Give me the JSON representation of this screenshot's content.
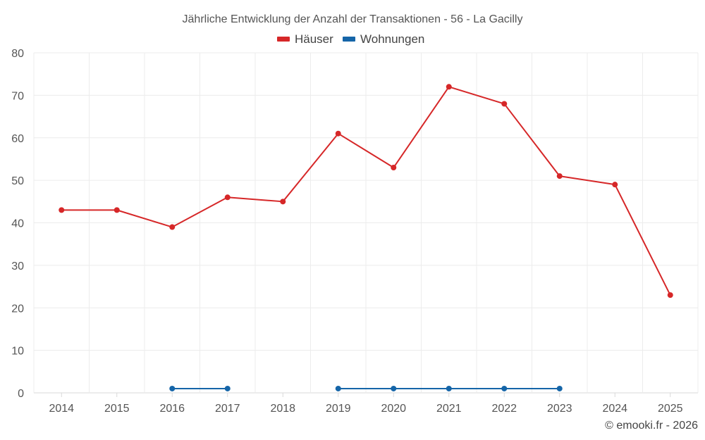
{
  "chart_data": {
    "type": "line",
    "title": "Jährliche Entwicklung der Anzahl der Transaktionen - 56 - La Gacilly",
    "categories": [
      "2014",
      "2015",
      "2016",
      "2017",
      "2018",
      "2019",
      "2020",
      "2021",
      "2022",
      "2023",
      "2024",
      "2025"
    ],
    "series": [
      {
        "name": "Häuser",
        "color": "#d62728",
        "values": [
          43,
          43,
          39,
          46,
          45,
          61,
          53,
          72,
          68,
          51,
          49,
          23
        ]
      },
      {
        "name": "Wohnungen",
        "color": "#1565a8",
        "values": [
          null,
          null,
          1,
          1,
          null,
          1,
          1,
          1,
          1,
          1,
          null,
          null
        ]
      }
    ],
    "ylim": [
      0,
      80
    ],
    "yticks": [
      0,
      10,
      20,
      30,
      40,
      50,
      60,
      70,
      80
    ],
    "xlabel": "",
    "ylabel": "",
    "grid": true,
    "legend": "top-center"
  },
  "credit": "© emooki.fr - 2026"
}
